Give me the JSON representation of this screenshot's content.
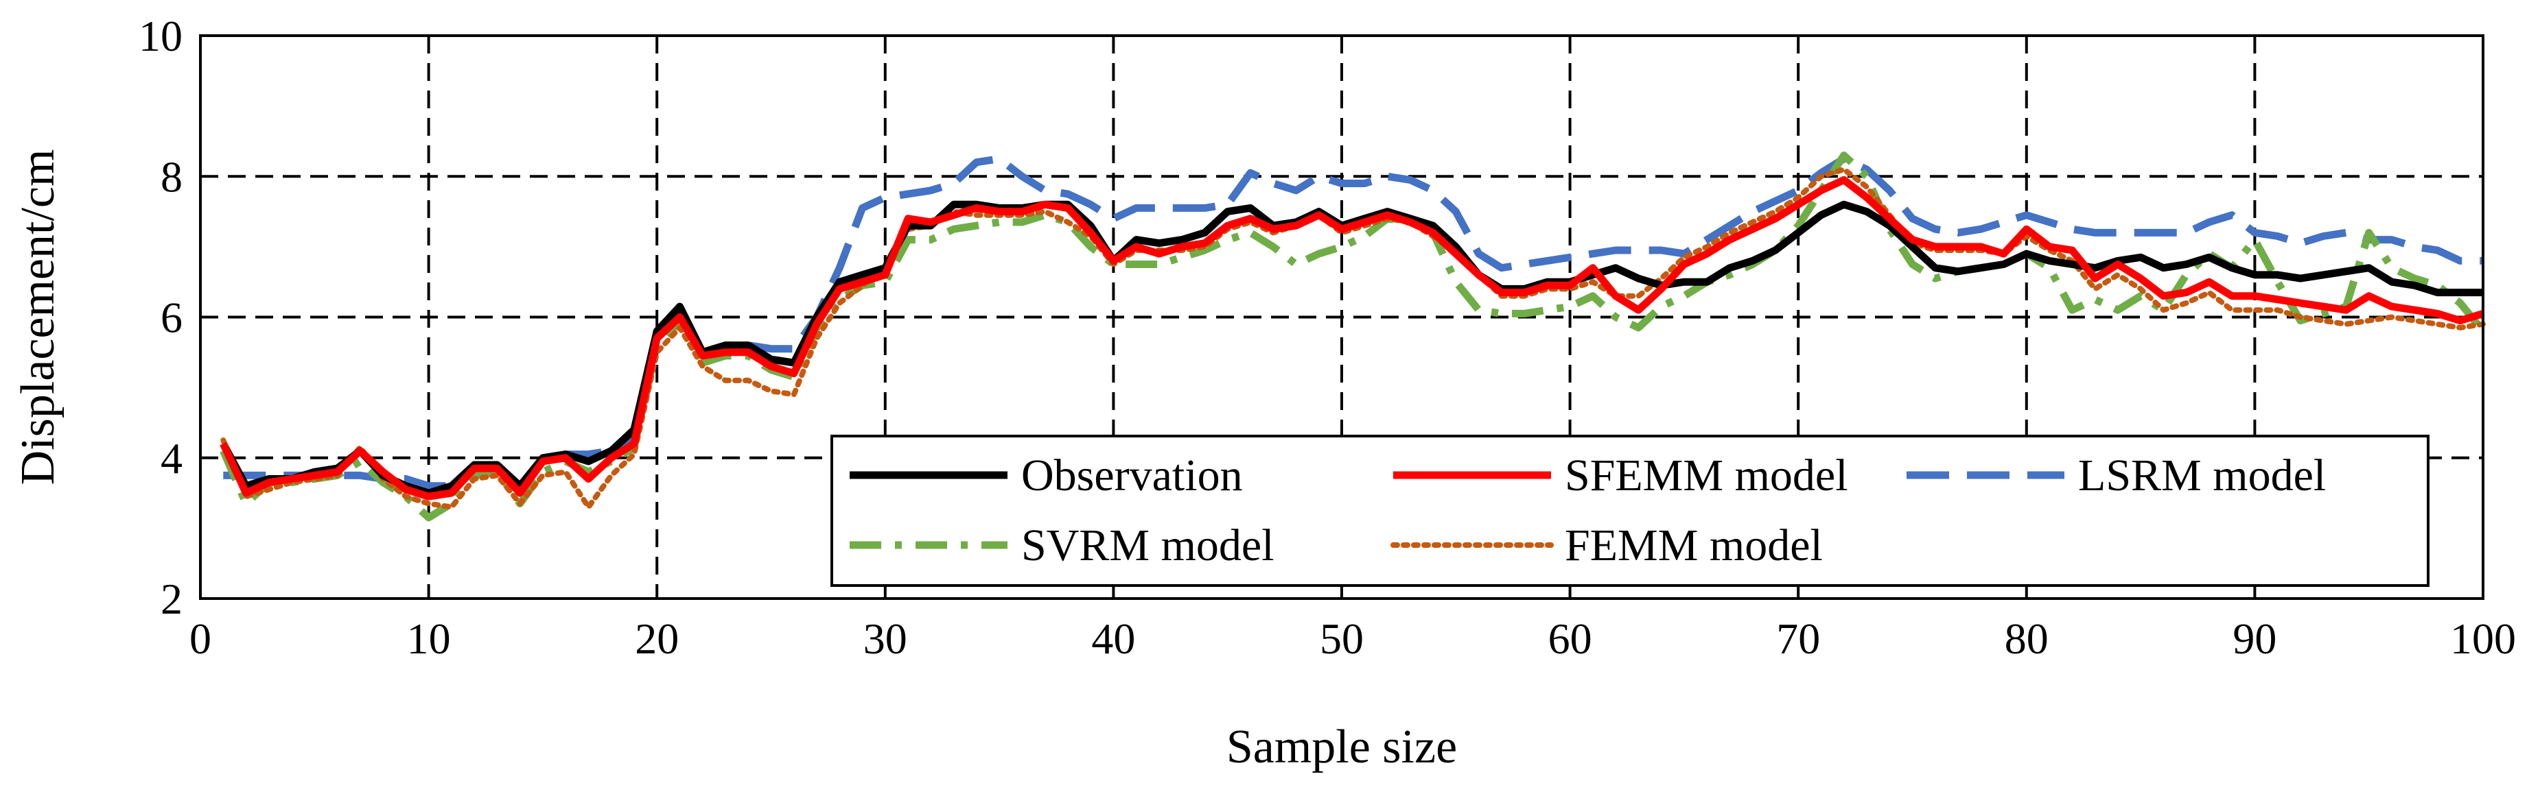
{
  "chart_data": {
    "type": "line",
    "title": "",
    "xlabel": "Sample size",
    "ylabel": "Displacement/cm",
    "xlim": [
      0,
      100
    ],
    "ylim": [
      2,
      10
    ],
    "xticks": [
      0,
      10,
      20,
      30,
      40,
      50,
      60,
      70,
      80,
      90,
      100
    ],
    "yticks": [
      2,
      4,
      6,
      8,
      10
    ],
    "grid": "dashed",
    "legend_position": "lower-right",
    "x": [
      1,
      2,
      3,
      4,
      5,
      6,
      7,
      8,
      9,
      10,
      11,
      12,
      13,
      14,
      15,
      16,
      17,
      18,
      19,
      20,
      21,
      22,
      23,
      24,
      25,
      26,
      27,
      28,
      29,
      30,
      31,
      32,
      33,
      34,
      35,
      36,
      37,
      38,
      39,
      40,
      41,
      42,
      43,
      44,
      45,
      46,
      47,
      48,
      49,
      50,
      51,
      52,
      53,
      54,
      55,
      56,
      57,
      58,
      59,
      60,
      61,
      62,
      63,
      64,
      65,
      66,
      67,
      68,
      69,
      70,
      71,
      72,
      73,
      74,
      75,
      76,
      77,
      78,
      79,
      80,
      81,
      82,
      83,
      84,
      85,
      86,
      87,
      88,
      89,
      90,
      91,
      92,
      93,
      94,
      95,
      96,
      97,
      98,
      99,
      100
    ],
    "series": [
      {
        "name": "Observation",
        "color": "#000000",
        "style": "solid",
        "values": [
          4.2,
          3.6,
          3.7,
          3.7,
          3.8,
          3.85,
          4.1,
          3.75,
          3.6,
          3.5,
          3.6,
          3.9,
          3.9,
          3.6,
          4.0,
          4.05,
          3.95,
          4.1,
          4.4,
          5.8,
          6.15,
          5.5,
          5.6,
          5.6,
          5.4,
          5.35,
          6.0,
          6.5,
          6.6,
          6.7,
          7.3,
          7.3,
          7.6,
          7.6,
          7.55,
          7.55,
          7.6,
          7.6,
          7.3,
          6.8,
          7.1,
          7.05,
          7.1,
          7.2,
          7.5,
          7.55,
          7.3,
          7.35,
          7.5,
          7.3,
          7.4,
          7.5,
          7.4,
          7.3,
          7.0,
          6.6,
          6.4,
          6.4,
          6.5,
          6.5,
          6.6,
          6.7,
          6.55,
          6.45,
          6.5,
          6.5,
          6.7,
          6.8,
          6.95,
          7.2,
          7.45,
          7.6,
          7.5,
          7.3,
          7.0,
          6.7,
          6.65,
          6.7,
          6.75,
          6.9,
          6.8,
          6.75,
          6.7,
          6.8,
          6.85,
          6.7,
          6.75,
          6.85,
          6.7,
          6.6,
          6.6,
          6.55,
          6.6,
          6.65,
          6.7,
          6.5,
          6.45,
          6.35,
          6.35,
          6.35
        ]
      },
      {
        "name": "SFEMM model",
        "color": "#ff0000",
        "style": "solid",
        "values": [
          4.2,
          3.5,
          3.65,
          3.7,
          3.75,
          3.8,
          4.1,
          3.8,
          3.55,
          3.45,
          3.5,
          3.85,
          3.85,
          3.5,
          3.95,
          4.0,
          3.7,
          4.0,
          4.2,
          5.7,
          6.0,
          5.45,
          5.5,
          5.5,
          5.3,
          5.2,
          5.9,
          6.4,
          6.5,
          6.6,
          7.4,
          7.35,
          7.45,
          7.55,
          7.5,
          7.5,
          7.6,
          7.55,
          7.2,
          6.8,
          7.0,
          6.9,
          7.0,
          7.05,
          7.3,
          7.4,
          7.25,
          7.3,
          7.45,
          7.25,
          7.35,
          7.45,
          7.35,
          7.2,
          6.9,
          6.6,
          6.35,
          6.35,
          6.45,
          6.45,
          6.7,
          6.3,
          6.1,
          6.4,
          6.75,
          6.9,
          7.1,
          7.25,
          7.4,
          7.6,
          7.8,
          7.95,
          7.7,
          7.4,
          7.1,
          7.0,
          7.0,
          7.0,
          6.9,
          7.25,
          7.0,
          6.95,
          6.55,
          6.75,
          6.55,
          6.3,
          6.35,
          6.5,
          6.3,
          6.3,
          6.25,
          6.2,
          6.15,
          6.1,
          6.3,
          6.15,
          6.1,
          6.05,
          5.95,
          6.05
        ]
      },
      {
        "name": "LSRM model",
        "color": "#4472c4",
        "style": "dash",
        "values": [
          3.75,
          3.75,
          3.75,
          3.75,
          3.75,
          3.75,
          3.75,
          3.7,
          3.7,
          3.6,
          3.6,
          3.8,
          3.9,
          3.6,
          3.95,
          4.05,
          4.05,
          4.1,
          4.3,
          5.7,
          6.0,
          5.5,
          5.6,
          5.6,
          5.55,
          5.55,
          6.0,
          6.7,
          7.55,
          7.7,
          7.75,
          7.8,
          7.9,
          8.2,
          8.25,
          8.0,
          7.8,
          7.75,
          7.6,
          7.4,
          7.55,
          7.55,
          7.55,
          7.55,
          7.6,
          8.05,
          7.9,
          7.8,
          8.0,
          7.9,
          7.9,
          8.0,
          7.95,
          7.8,
          7.5,
          6.9,
          6.7,
          6.75,
          6.8,
          6.85,
          6.9,
          6.95,
          6.95,
          6.95,
          6.9,
          7.1,
          7.3,
          7.5,
          7.65,
          7.8,
          8.05,
          8.25,
          8.1,
          7.8,
          7.4,
          7.25,
          7.2,
          7.25,
          7.35,
          7.45,
          7.35,
          7.25,
          7.2,
          7.2,
          7.2,
          7.2,
          7.2,
          7.35,
          7.45,
          7.2,
          7.15,
          7.05,
          7.15,
          7.2,
          7.1,
          7.1,
          7.0,
          6.95,
          6.8,
          6.8
        ]
      },
      {
        "name": "SVRM model",
        "color": "#70ad47",
        "style": "dashdot",
        "values": [
          4.1,
          3.35,
          3.65,
          3.65,
          3.7,
          3.75,
          3.95,
          3.65,
          3.45,
          3.15,
          3.35,
          3.75,
          3.8,
          3.35,
          3.8,
          3.95,
          3.8,
          3.95,
          4.15,
          5.6,
          5.95,
          5.35,
          5.45,
          5.45,
          5.25,
          5.15,
          5.85,
          6.25,
          6.45,
          6.5,
          7.1,
          7.1,
          7.25,
          7.3,
          7.35,
          7.35,
          7.45,
          7.35,
          7.0,
          6.75,
          6.75,
          6.75,
          6.85,
          6.95,
          7.1,
          7.2,
          7.0,
          6.75,
          6.9,
          7.0,
          7.15,
          7.4,
          7.35,
          7.2,
          6.5,
          6.1,
          6.05,
          6.05,
          6.1,
          6.15,
          6.3,
          6.0,
          5.85,
          6.15,
          6.3,
          6.5,
          6.6,
          6.75,
          6.95,
          7.3,
          7.8,
          8.3,
          8.0,
          7.25,
          6.75,
          6.55,
          6.65,
          6.7,
          6.75,
          6.9,
          6.7,
          6.1,
          6.25,
          6.1,
          6.3,
          6.1,
          6.6,
          6.9,
          6.7,
          7.1,
          6.5,
          5.95,
          6.05,
          6.15,
          7.2,
          6.7,
          6.55,
          6.45,
          6.2,
          5.8
        ]
      },
      {
        "name": "FEMM model",
        "color": "#c55a11",
        "style": "dot",
        "values": [
          4.25,
          3.45,
          3.55,
          3.65,
          3.7,
          3.75,
          4.15,
          3.7,
          3.45,
          3.35,
          3.3,
          3.7,
          3.75,
          3.35,
          3.75,
          3.8,
          3.3,
          3.75,
          4.05,
          5.5,
          5.85,
          5.3,
          5.1,
          5.1,
          4.95,
          4.9,
          5.7,
          6.2,
          6.45,
          6.7,
          7.25,
          7.3,
          7.5,
          7.45,
          7.45,
          7.45,
          7.5,
          7.35,
          7.15,
          6.75,
          6.95,
          6.95,
          6.95,
          7.0,
          7.25,
          7.35,
          7.2,
          7.3,
          7.45,
          7.2,
          7.3,
          7.4,
          7.35,
          7.15,
          6.95,
          6.6,
          6.3,
          6.3,
          6.4,
          6.4,
          6.5,
          6.3,
          6.3,
          6.55,
          6.85,
          7.0,
          7.2,
          7.35,
          7.5,
          7.7,
          8.0,
          8.1,
          7.85,
          7.45,
          7.05,
          6.95,
          6.95,
          6.95,
          6.9,
          7.15,
          6.95,
          6.8,
          6.4,
          6.6,
          6.4,
          6.1,
          6.2,
          6.35,
          6.1,
          6.1,
          6.1,
          6.0,
          5.95,
          5.9,
          5.95,
          6.0,
          5.95,
          5.9,
          5.85,
          5.9
        ]
      }
    ]
  }
}
